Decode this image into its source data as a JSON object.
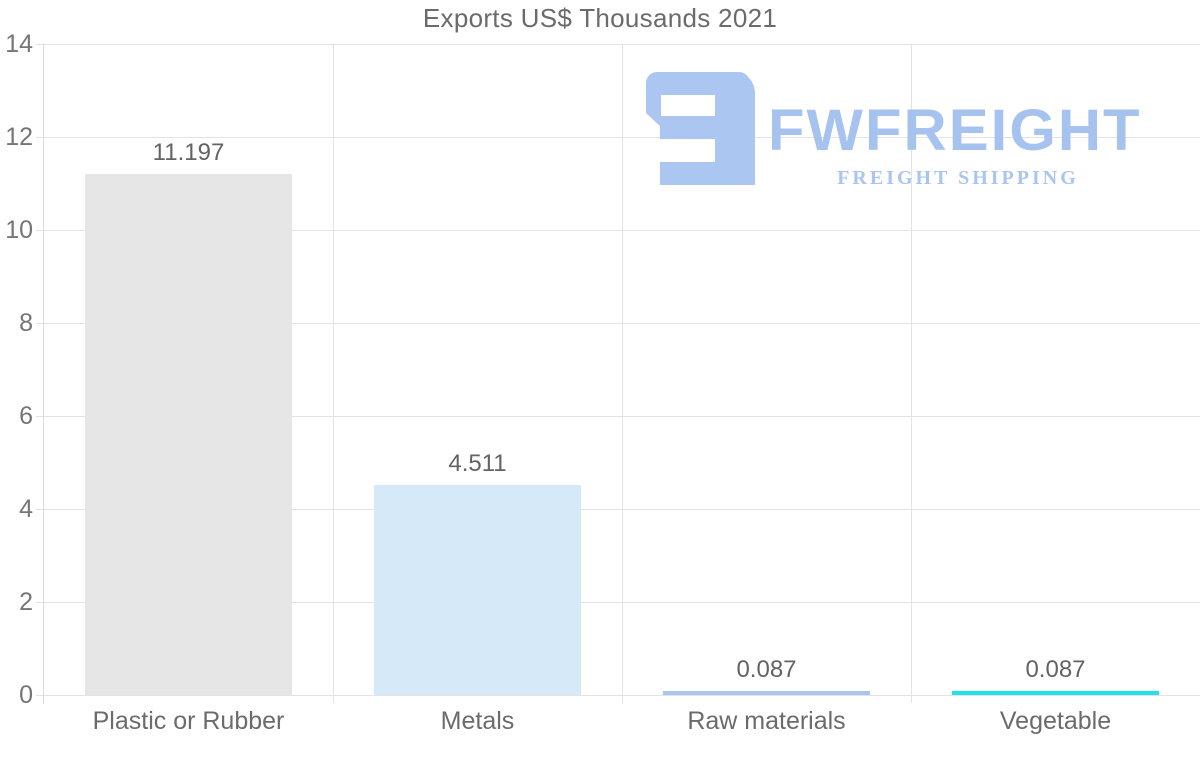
{
  "watermark": {
    "brand": "FWFREIGHT",
    "tagline": "FREIGHT SHIPPING",
    "logo_color": "#abc6f0",
    "text_color": "#a6c2ee"
  },
  "chart_data": {
    "type": "bar",
    "title": "Exports US$ Thousands 2021",
    "categories": [
      "Plastic or Rubber",
      "Metals",
      "Raw materials",
      "Vegetable"
    ],
    "values": [
      11.197,
      4.511,
      0.087,
      0.087
    ],
    "value_labels": [
      "11.197",
      "4.511",
      "0.087",
      "0.087"
    ],
    "bar_colors": [
      "#e6e6e6",
      "#d6e9f9",
      "#a9c8e9",
      "#1fe2ea"
    ],
    "xlabel": "",
    "ylabel": "",
    "ylim": [
      0,
      14
    ],
    "yticks": [
      0,
      2,
      4,
      6,
      8,
      10,
      12,
      14
    ],
    "grid": true,
    "legend": false,
    "grid_color": "#e3e3e3",
    "text_color": "#6b6b6b"
  }
}
